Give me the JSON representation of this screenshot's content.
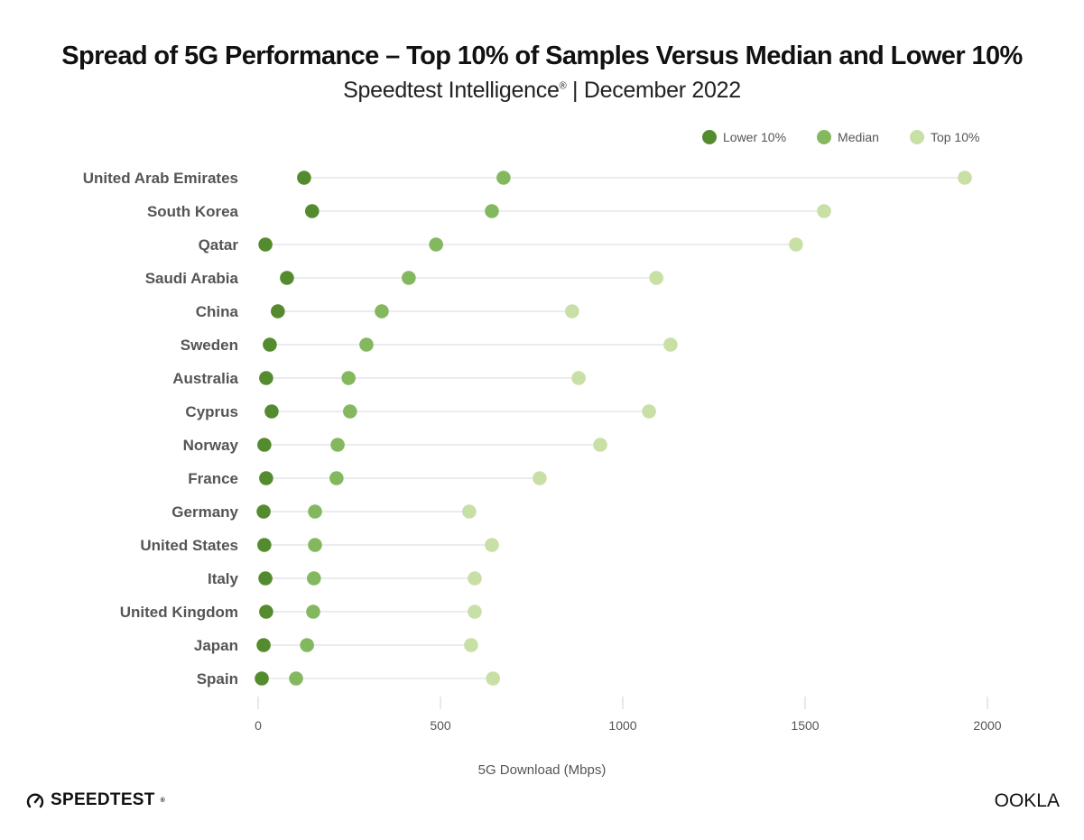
{
  "header": {
    "title": "Spread of 5G Performance – Top 10% of Samples Versus Median and Lower 10%",
    "subtitle_main": "Speedtest Intelligence",
    "subtitle_reg": "®",
    "subtitle_rest": " | December 2022"
  },
  "colors": {
    "lower": "#558b2f",
    "median": "#84b85f",
    "top": "#c8dfa5",
    "track": "#ececf0",
    "tick": "#d0d0d8"
  },
  "legend": [
    {
      "key": "lower",
      "label": "Lower 10%"
    },
    {
      "key": "median",
      "label": "Median"
    },
    {
      "key": "top",
      "label": "Top 10%"
    }
  ],
  "footer": {
    "speedtest_logo": "SPEEDTEST",
    "speedtest_mark": "®",
    "ookla_logo": "OOKLA"
  },
  "chart_data": {
    "type": "scatter",
    "subtype": "dot-plot",
    "title": "Spread of 5G Performance – Top 10% of Samples Versus Median and Lower 10%",
    "subtitle": "Speedtest Intelligence® | December 2022",
    "xlabel": "5G Download (Mbps)",
    "ylabel": "",
    "xlim": [
      0,
      2000
    ],
    "xticks": [
      0,
      500,
      1000,
      1500,
      2000
    ],
    "legend_position": "top-right",
    "grid": false,
    "categories": [
      "United Arab Emirates",
      "South Korea",
      "Qatar",
      "Saudi Arabia",
      "China",
      "Sweden",
      "Australia",
      "Cyprus",
      "Norway",
      "France",
      "Germany",
      "United States",
      "Italy",
      "United Kingdom",
      "Japan",
      "Spain"
    ],
    "series": [
      {
        "name": "Lower 10%",
        "key": "lower",
        "values": [
          126,
          148,
          20,
          79,
          54,
          32,
          22,
          37,
          17,
          22,
          15,
          17,
          20,
          22,
          15,
          10
        ]
      },
      {
        "name": "Median",
        "key": "median",
        "values": [
          673,
          641,
          488,
          413,
          339,
          297,
          248,
          252,
          218,
          215,
          156,
          156,
          153,
          151,
          134,
          104
        ]
      },
      {
        "name": "Top 10%",
        "key": "top",
        "values": [
          1938,
          1552,
          1475,
          1092,
          861,
          1131,
          879,
          1072,
          938,
          772,
          579,
          641,
          594,
          594,
          584,
          644
        ]
      }
    ]
  }
}
